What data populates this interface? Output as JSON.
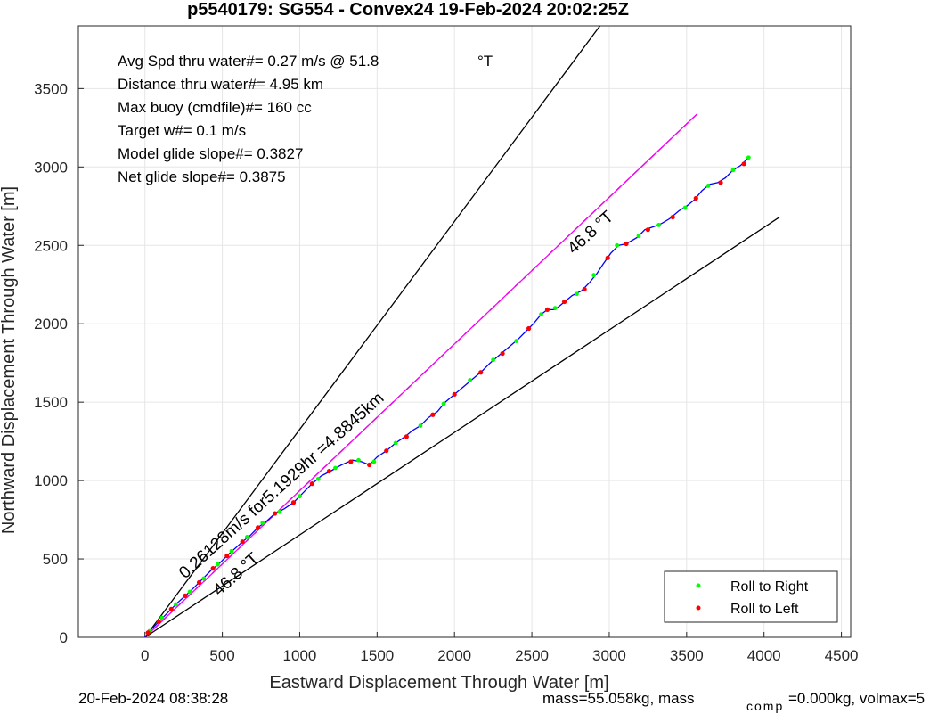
{
  "chart_data": {
    "type": "line",
    "title": "p5540179: SG554 - Convex24 19-Feb-2024 20:02:25Z",
    "xlabel": "Eastward Displacement Through Water [m]",
    "ylabel": "Northward Displacement Through Water [m]",
    "xlim": [
      -430,
      4560
    ],
    "ylim": [
      0,
      3900
    ],
    "xticks": [
      0,
      500,
      1000,
      1500,
      2000,
      2500,
      3000,
      3500,
      4000,
      4500
    ],
    "yticks": [
      0,
      500,
      1000,
      1500,
      2000,
      2500,
      3000,
      3500
    ],
    "grid": true,
    "info_lines": [
      "Avg Spd thru water#=  0.27 m/s @  51.8",
      "Distance thru water#=  4.95 km",
      "Max buoy (cmdfile)#= 160 cc",
      "Target w#= 0.1 m/s",
      "Model glide slope#= 0.3827",
      "Net glide slope#= 0.3875"
    ],
    "info_unit": "°T",
    "reference_lines": [
      {
        "from": [
          0,
          0
        ],
        "to": [
          2940,
          3900
        ],
        "color": "#000000"
      },
      {
        "from": [
          0,
          0
        ],
        "to": [
          4100,
          2680
        ],
        "color": "#000000"
      },
      {
        "from": [
          0,
          0
        ],
        "to": [
          3570,
          3340
        ],
        "color": "#000000",
        "dashed": true
      },
      {
        "from": [
          0,
          0
        ],
        "to": [
          3570,
          3340
        ],
        "color": "#ff00ff"
      }
    ],
    "annotations": [
      {
        "text": "0.26128m/s for5.1929hr =4.8845km",
        "at": [
          260,
          370
        ],
        "angle_deg": -42
      },
      {
        "text": "46.8 °T",
        "at": [
          2770,
          2440
        ],
        "angle_deg": -42
      },
      {
        "text": "46.8 °T",
        "at": [
          480,
          260
        ],
        "angle_deg": -42
      }
    ],
    "track_points": [
      [
        0,
        0
      ],
      [
        40,
        50
      ],
      [
        80,
        90
      ],
      [
        120,
        130
      ],
      [
        165,
        175
      ],
      [
        210,
        220
      ],
      [
        250,
        255
      ],
      [
        300,
        300
      ],
      [
        340,
        340
      ],
      [
        385,
        385
      ],
      [
        430,
        430
      ],
      [
        480,
        470
      ],
      [
        530,
        520
      ],
      [
        580,
        565
      ],
      [
        630,
        610
      ],
      [
        680,
        650
      ],
      [
        730,
        700
      ],
      [
        790,
        745
      ],
      [
        840,
        790
      ],
      [
        900,
        820
      ],
      [
        960,
        860
      ],
      [
        1020,
        920
      ],
      [
        1080,
        980
      ],
      [
        1140,
        1030
      ],
      [
        1200,
        1060
      ],
      [
        1270,
        1100
      ],
      [
        1340,
        1130
      ],
      [
        1400,
        1120
      ],
      [
        1450,
        1100
      ],
      [
        1500,
        1150
      ],
      [
        1560,
        1190
      ],
      [
        1620,
        1240
      ],
      [
        1680,
        1280
      ],
      [
        1730,
        1320
      ],
      [
        1780,
        1350
      ],
      [
        1830,
        1400
      ],
      [
        1890,
        1440
      ],
      [
        1940,
        1500
      ],
      [
        2000,
        1550
      ],
      [
        2060,
        1600
      ],
      [
        2120,
        1650
      ],
      [
        2180,
        1700
      ],
      [
        2230,
        1750
      ],
      [
        2290,
        1800
      ],
      [
        2350,
        1850
      ],
      [
        2410,
        1900
      ],
      [
        2460,
        1950
      ],
      [
        2510,
        2000
      ],
      [
        2560,
        2060
      ],
      [
        2600,
        2090
      ],
      [
        2650,
        2090
      ],
      [
        2700,
        2130
      ],
      [
        2760,
        2180
      ],
      [
        2820,
        2210
      ],
      [
        2870,
        2260
      ],
      [
        2920,
        2320
      ],
      [
        2960,
        2380
      ],
      [
        3010,
        2450
      ],
      [
        3060,
        2500
      ],
      [
        3110,
        2510
      ],
      [
        3180,
        2550
      ],
      [
        3230,
        2600
      ],
      [
        3290,
        2620
      ],
      [
        3340,
        2640
      ],
      [
        3390,
        2670
      ],
      [
        3450,
        2720
      ],
      [
        3500,
        2750
      ],
      [
        3550,
        2790
      ],
      [
        3600,
        2850
      ],
      [
        3650,
        2890
      ],
      [
        3700,
        2900
      ],
      [
        3750,
        2930
      ],
      [
        3800,
        2980
      ],
      [
        3850,
        3010
      ],
      [
        3900,
        3060
      ]
    ],
    "roll_right_points": [
      [
        30,
        40
      ],
      [
        110,
        125
      ],
      [
        200,
        210
      ],
      [
        290,
        290
      ],
      [
        380,
        375
      ],
      [
        470,
        465
      ],
      [
        560,
        550
      ],
      [
        660,
        640
      ],
      [
        760,
        730
      ],
      [
        870,
        800
      ],
      [
        1000,
        900
      ],
      [
        1120,
        1010
      ],
      [
        1230,
        1080
      ],
      [
        1380,
        1130
      ],
      [
        1480,
        1120
      ],
      [
        1620,
        1240
      ],
      [
        1780,
        1350
      ],
      [
        1930,
        1490
      ],
      [
        2100,
        1640
      ],
      [
        2250,
        1770
      ],
      [
        2400,
        1890
      ],
      [
        2560,
        2060
      ],
      [
        2650,
        2100
      ],
      [
        2790,
        2190
      ],
      [
        2900,
        2310
      ],
      [
        3050,
        2500
      ],
      [
        3190,
        2560
      ],
      [
        3320,
        2630
      ],
      [
        3490,
        2740
      ],
      [
        3640,
        2880
      ],
      [
        3800,
        2980
      ],
      [
        3900,
        3060
      ]
    ],
    "roll_left_points": [
      [
        20,
        30
      ],
      [
        90,
        100
      ],
      [
        170,
        180
      ],
      [
        260,
        265
      ],
      [
        350,
        350
      ],
      [
        440,
        440
      ],
      [
        530,
        520
      ],
      [
        630,
        610
      ],
      [
        730,
        700
      ],
      [
        840,
        790
      ],
      [
        960,
        860
      ],
      [
        1080,
        980
      ],
      [
        1190,
        1060
      ],
      [
        1330,
        1120
      ],
      [
        1450,
        1100
      ],
      [
        1560,
        1190
      ],
      [
        1690,
        1280
      ],
      [
        1860,
        1420
      ],
      [
        2000,
        1550
      ],
      [
        2170,
        1690
      ],
      [
        2310,
        1810
      ],
      [
        2480,
        1970
      ],
      [
        2600,
        2090
      ],
      [
        2710,
        2140
      ],
      [
        2840,
        2220
      ],
      [
        2990,
        2420
      ],
      [
        3110,
        2510
      ],
      [
        3250,
        2600
      ],
      [
        3410,
        2680
      ],
      [
        3560,
        2800
      ],
      [
        3720,
        2900
      ],
      [
        3870,
        3020
      ]
    ],
    "legend": {
      "position": "bottom-right",
      "entries": [
        {
          "label": "Roll to Right",
          "color": "#00ff00"
        },
        {
          "label": "Roll to Left",
          "color": "#ff0000"
        }
      ]
    },
    "colors": {
      "track": "#0000ff",
      "roll_right": "#00ff00",
      "roll_left": "#ff0000"
    }
  },
  "footer": {
    "date": "20-Feb-2024 08:38:28",
    "mass_text": "mass=55.058kg, mass",
    "comp_sub": "comp",
    "comp_text": "=0.000kg, volmax=5"
  }
}
